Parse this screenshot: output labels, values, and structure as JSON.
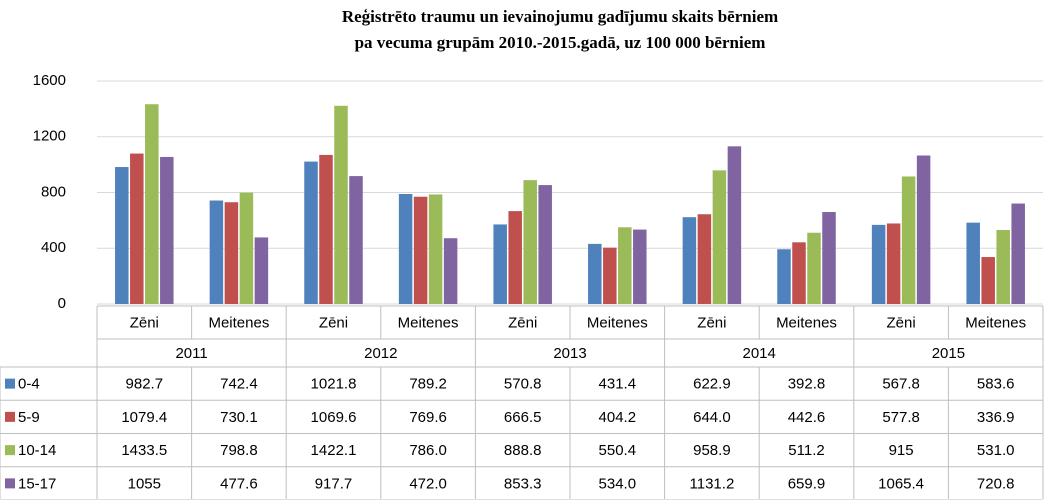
{
  "chart_data": {
    "type": "bar",
    "title": "Reģistrēto traumu un ievainojumu gadījumu skaits bērniem",
    "subtitle": "pa vecuma grupām 2010.-2015.gadā, uz 100 000 bērniem",
    "categories": [
      "Zēni",
      "Meitenes",
      "Zēni",
      "Meitenes",
      "Zēni",
      "Meitenes",
      "Zēni",
      "Meitenes",
      "Zēni",
      "Meitenes"
    ],
    "groups": [
      "2011",
      "2012",
      "2013",
      "2014",
      "2015"
    ],
    "series": [
      {
        "name": "0-4",
        "color": "#4f81bd",
        "values": [
          982.7,
          742.4,
          1021.8,
          789.2,
          570.8,
          431.4,
          622.9,
          392.8,
          567.8,
          583.6
        ],
        "value_labels": [
          "982.7",
          "742.4",
          "1021.8",
          "789.2",
          "570.8",
          "431.4",
          "622.9",
          "392.8",
          "567.8",
          "583.6"
        ]
      },
      {
        "name": "5-9",
        "color": "#c0504d",
        "values": [
          1079.4,
          730.1,
          1069.6,
          769.6,
          666.5,
          404.2,
          644,
          442.6,
          577.8,
          336.9
        ],
        "value_labels": [
          "1079.4",
          "730.1",
          "1069.6",
          "769.6",
          "666.5",
          "404.2",
          "644.0",
          "442.6",
          "577.8",
          "336.9"
        ]
      },
      {
        "name": "10-14",
        "color": "#9bbb59",
        "values": [
          1433.5,
          798.8,
          1422.1,
          786,
          888.8,
          550.4,
          958.9,
          511.2,
          915,
          531
        ],
        "value_labels": [
          "1433.5",
          "798.8",
          "1422.1",
          "786.0",
          "888.8",
          "550.4",
          "958.9",
          "511.2",
          "915",
          "531.0"
        ]
      },
      {
        "name": "15-17",
        "color": "#8064a2",
        "values": [
          1055,
          477.6,
          917.7,
          472,
          853.3,
          534,
          1131.2,
          659.9,
          1065.4,
          720.8
        ],
        "value_labels": [
          "1055",
          "477.6",
          "917.7",
          "472.0",
          "853.3",
          "534.0",
          "1131.2",
          "659.9",
          "1065.4",
          "720.8"
        ]
      }
    ],
    "ylim": [
      0,
      1600
    ],
    "yticks": [
      0,
      400,
      800,
      1200,
      1600
    ],
    "grid": true
  }
}
